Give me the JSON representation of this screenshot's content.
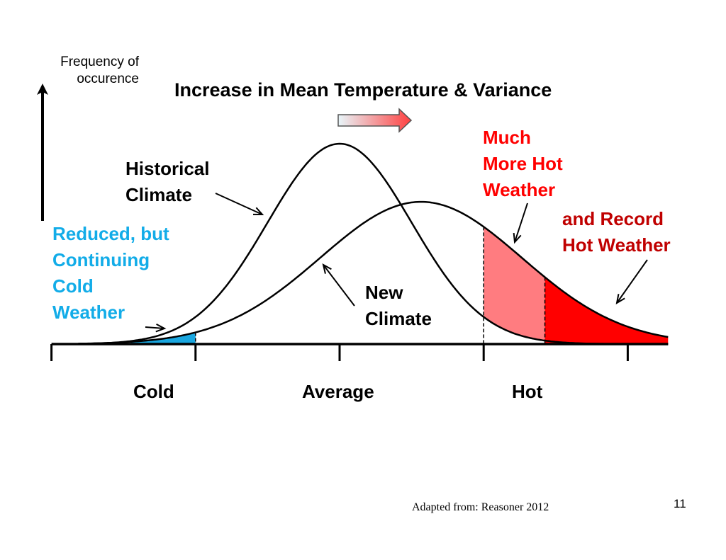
{
  "chart_data": {
    "type": "area",
    "title": "Increase in Mean Temperature & Variance",
    "ylabel": "Frequency of\noccurence",
    "xlabel": "",
    "x_tick_labels": [
      {
        "label": "Cold",
        "at": -1.5
      },
      {
        "label": "Average",
        "at": 0
      },
      {
        "label": "Hot",
        "at": 2.6
      }
    ],
    "x_ticks": [
      -4,
      -2,
      0,
      2,
      4
    ],
    "xlim": [
      -4,
      4.56
    ],
    "ylim": [
      0,
      1.1
    ],
    "grid": false,
    "series": [
      {
        "name": "Historical Climate",
        "distribution": "normal",
        "mean": 0,
        "sd": 1.0,
        "relative_peak": 1.0
      },
      {
        "name": "New Climate",
        "distribution": "normal",
        "mean": 1.13,
        "sd": 1.4,
        "relative_peak": 0.71
      }
    ],
    "shaded_regions": [
      {
        "name": "cold-tail",
        "curve": "New Climate",
        "from": -2.9,
        "to": -2.0,
        "color": "#1aa7e0"
      },
      {
        "name": "much-more-hot",
        "between_curves": [
          "Historical Climate",
          "New Climate"
        ],
        "from": 2.0,
        "to": 2.85,
        "color": "#ff7c80"
      },
      {
        "name": "record-hot",
        "curve": "New Climate",
        "from": 2.85,
        "to": 4.56,
        "color": "#ff0000"
      }
    ],
    "dashed_lines_at": [
      -2.0,
      2.0,
      2.85
    ],
    "shift_arrow": {
      "direction": "right",
      "gradient_from": "#e8f6fa",
      "gradient_to": "#ff4040"
    },
    "annotations": [
      {
        "id": "historical",
        "text": "Historical\nClimate",
        "color": "#000000"
      },
      {
        "id": "new",
        "text": "New\nClimate",
        "color": "#000000"
      },
      {
        "id": "cold",
        "text": "Reduced, but\nContinuing\nCold\nWeather",
        "color": "#12ace8"
      },
      {
        "id": "hot",
        "text": "Much\nMore Hot\nWeather",
        "color": "#ff0000"
      },
      {
        "id": "record",
        "text": "and Record\nHot Weather",
        "color": "#c00000"
      }
    ]
  },
  "footer": {
    "source": "Adapted from: Reasoner 2012",
    "page_number": "11"
  }
}
